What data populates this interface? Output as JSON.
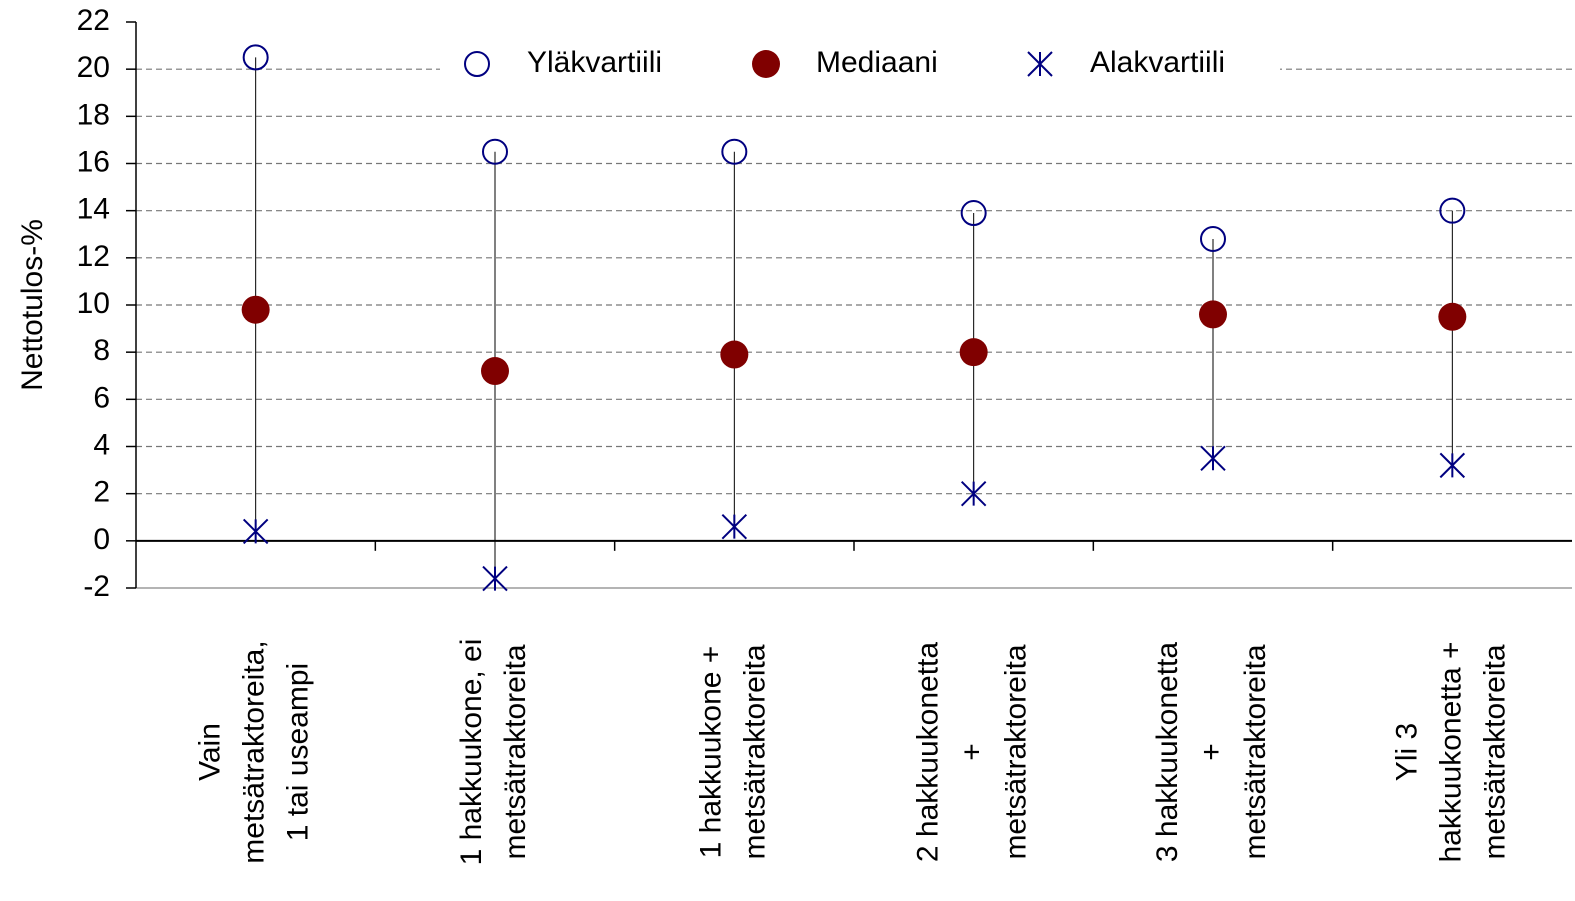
{
  "chart_data": {
    "type": "range-dot",
    "y_label": "Nettotulos-%",
    "categories": [
      [
        "Vain",
        "metsätraktoreita,",
        "1 tai useampi"
      ],
      [
        "1 hakkuukone, ei",
        "metsätraktoreita"
      ],
      [
        "1 hakkuukone +",
        "metsätraktoreita"
      ],
      [
        "2 hakkuukonetta",
        "+",
        "metsätraktoreita"
      ],
      [
        "3 hakkuukonetta",
        "+",
        "metsätraktoreita"
      ],
      [
        "Yli 3",
        "hakkuukonetta +",
        "metsätraktoreita"
      ]
    ],
    "series": [
      {
        "name": "Yläkvartiili",
        "color": "#000080",
        "marker": "open-circle",
        "values": [
          20.5,
          16.5,
          16.5,
          13.9,
          12.8,
          14.0
        ]
      },
      {
        "name": "Mediaani",
        "color": "#800000",
        "marker": "filled-circle",
        "values": [
          9.8,
          7.2,
          7.9,
          8.0,
          9.6,
          9.5
        ]
      },
      {
        "name": "Alakvartiili",
        "color": "#000080",
        "marker": "star",
        "values": [
          0.4,
          -1.6,
          0.6,
          2.0,
          3.5,
          3.2
        ]
      }
    ],
    "ylim": [
      -2,
      22
    ],
    "yticks": [
      -2,
      0,
      2,
      4,
      6,
      8,
      10,
      12,
      14,
      16,
      18,
      20,
      22
    ],
    "grid": true
  }
}
